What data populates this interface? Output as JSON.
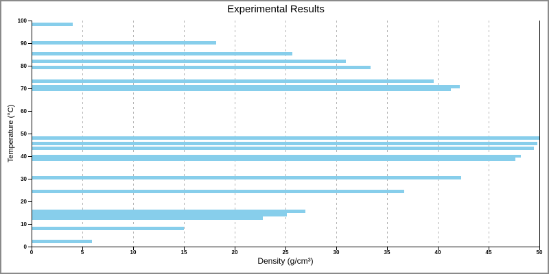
{
  "window": {
    "background": "#ffffff",
    "frame_color": "#8a8a8a"
  },
  "chart_data": {
    "type": "bar",
    "orientation": "horizontal",
    "title": "Experimental Results",
    "xlabel": "Density (g/cm³)",
    "ylabel": "Temperature (°C)",
    "xlim": [
      0,
      50
    ],
    "ylim": [
      0,
      100
    ],
    "x_ticks": [
      0,
      5,
      10,
      15,
      20,
      25,
      30,
      35,
      40,
      45,
      50
    ],
    "y_ticks": [
      0,
      10,
      20,
      30,
      40,
      50,
      60,
      70,
      80,
      90,
      100
    ],
    "grid": {
      "vertical": true,
      "style": "dashed",
      "color": "#b4b4b4"
    },
    "bar_color": "#87CEEB",
    "bar_height_units": 1.5,
    "points": [
      {
        "temperature": 98.4,
        "density": 4.0
      },
      {
        "temperature": 90.2,
        "density": 18.1
      },
      {
        "temperature": 85.4,
        "density": 25.6
      },
      {
        "temperature": 82.0,
        "density": 30.9
      },
      {
        "temperature": 79.2,
        "density": 33.3
      },
      {
        "temperature": 73.3,
        "density": 39.5
      },
      {
        "temperature": 70.8,
        "density": 42.1
      },
      {
        "temperature": 69.4,
        "density": 41.2
      },
      {
        "temperature": 48.0,
        "density": 50.0
      },
      {
        "temperature": 45.6,
        "density": 49.7
      },
      {
        "temperature": 43.6,
        "density": 49.4
      },
      {
        "temperature": 40.0,
        "density": 48.1
      },
      {
        "temperature": 38.6,
        "density": 47.6
      },
      {
        "temperature": 30.5,
        "density": 42.2
      },
      {
        "temperature": 24.3,
        "density": 36.6
      },
      {
        "temperature": 15.6,
        "density": 26.9
      },
      {
        "temperature": 14.2,
        "density": 25.1
      },
      {
        "temperature": 12.6,
        "density": 22.7
      },
      {
        "temperature": 8.0,
        "density": 14.9
      },
      {
        "temperature": 2.3,
        "density": 5.9
      }
    ]
  }
}
